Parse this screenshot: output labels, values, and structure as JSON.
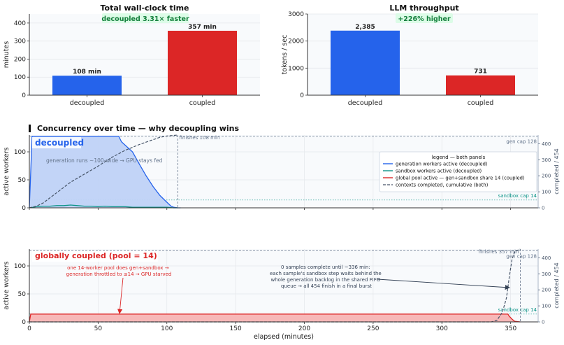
{
  "colors": {
    "decoupled": "#2563eb",
    "coupled": "#dc2626",
    "sandbox": "#0d9488",
    "cumulative": "#475569",
    "grid": "#e5e7eb",
    "badge_bg": "#dcfce7",
    "badge_text": "#15803d"
  },
  "chart_data": [
    {
      "id": "wallclock",
      "type": "bar",
      "title": "Total wall-clock time",
      "badge": "decoupled 3.31× faster",
      "categories": [
        "decoupled",
        "coupled"
      ],
      "values": [
        108,
        357
      ],
      "value_labels": [
        "108 min",
        "357 min"
      ],
      "ylabel": "minutes",
      "ylim": [
        0,
        450
      ],
      "yticks": [
        0,
        100,
        200,
        300,
        400
      ],
      "ytick_labels": [
        "0",
        "100",
        "200",
        "300",
        "400"
      ]
    },
    {
      "id": "throughput",
      "type": "bar",
      "title": "LLM throughput",
      "badge": "+226% higher",
      "categories": [
        "decoupled",
        "coupled"
      ],
      "values": [
        2385,
        731
      ],
      "value_labels": [
        "2,385",
        "731"
      ],
      "ylabel": "tokens / sec",
      "ylim": [
        0,
        3000
      ],
      "yticks": [
        0,
        1000,
        2000,
        3000
      ],
      "ytick_labels": [
        "0",
        "1000",
        "2000",
        "3000"
      ]
    },
    {
      "id": "decoupled_timeline",
      "type": "area",
      "section_title": "Concurrency over time — why decoupling wins",
      "panel_label": "decoupled",
      "ylabel": "active workers",
      "y2label": "completed / 454",
      "xlim": [
        0,
        370
      ],
      "ylim": [
        0,
        130
      ],
      "yticks": [
        0,
        50,
        100
      ],
      "ytick_labels": [
        "0",
        "50",
        "100"
      ],
      "y2lim": [
        0,
        454
      ],
      "y2ticks": [
        0,
        100,
        200,
        300,
        400
      ],
      "y2tick_labels": [
        "0",
        "100",
        "200",
        "300",
        "400"
      ],
      "gen_cap": 128,
      "gen_cap_label": "gen cap 128",
      "sandbox_cap": 14,
      "sandbox_cap_label": "sandbox cap 14",
      "finish": 108,
      "finish_label": "finishes 108 min",
      "annotation": "generation runs ~100-wide → GPU stays fed",
      "series": [
        {
          "name": "generation workers active  (decoupled)",
          "x": [
            0,
            2,
            65,
            67,
            75,
            80,
            85,
            90,
            95,
            100,
            103,
            105,
            108,
            110
          ],
          "y": [
            0,
            128,
            128,
            118,
            100,
            78,
            57,
            38,
            22,
            10,
            3,
            1,
            0,
            0
          ]
        },
        {
          "name": "sandbox workers active  (decoupled)",
          "x": [
            0,
            5,
            10,
            15,
            20,
            25,
            30,
            35,
            40,
            45,
            50,
            55,
            60,
            65,
            70,
            75,
            80,
            85,
            90,
            95,
            100,
            105,
            108
          ],
          "y": [
            0,
            2,
            3,
            3,
            4,
            4,
            5,
            4,
            3,
            3,
            2,
            3,
            2,
            2,
            2,
            1,
            1,
            1,
            1,
            1,
            1,
            0,
            0
          ]
        },
        {
          "name": "contexts completed, cumulative  (both)",
          "x": [
            0,
            5,
            10,
            20,
            30,
            40,
            50,
            60,
            70,
            80,
            90,
            95,
            100,
            105,
            108
          ],
          "y": [
            0,
            10,
            30,
            95,
            160,
            210,
            260,
            315,
            360,
            395,
            425,
            440,
            448,
            452,
            454
          ]
        }
      ],
      "legend": {
        "title": "legend — both panels",
        "position": "right",
        "entries": [
          "generation workers active  (decoupled)",
          "sandbox workers active  (decoupled)",
          "global pool active — gen+sandbox share 14  (coupled)",
          "contexts completed, cumulative  (both)"
        ]
      }
    },
    {
      "id": "coupled_timeline",
      "type": "area",
      "panel_label": "globally coupled (pool = 14)",
      "ylabel": "active workers",
      "y2label": "completed / 454",
      "xlabel": "elapsed (minutes)",
      "xlim": [
        0,
        370
      ],
      "xticks": [
        0,
        50,
        100,
        150,
        200,
        250,
        300,
        350
      ],
      "xtick_labels": [
        "0",
        "50",
        "100",
        "150",
        "200",
        "250",
        "300",
        "350"
      ],
      "ylim": [
        0,
        130
      ],
      "yticks": [
        0,
        50,
        100
      ],
      "ytick_labels": [
        "0",
        "50",
        "100"
      ],
      "y2lim": [
        0,
        454
      ],
      "y2ticks": [
        0,
        100,
        200,
        300,
        400
      ],
      "y2tick_labels": [
        "0",
        "100",
        "200",
        "300",
        "400"
      ],
      "gen_cap": 128,
      "gen_cap_label": "gen cap 128",
      "sandbox_cap": 14,
      "sandbox_cap_label": "sandbox cap 14",
      "finish": 357,
      "finish_label": "finishes 357 min",
      "annotation_left": "one 14-worker pool does gen+sandbox →\ngeneration throttled to ≤14 → GPU starved",
      "annotation_right": "0 samples complete until ~336 min:\neach sample's sandbox step waits behind the\nwhole generation backlog in the shared FIFO\nqueue → all 454 finish in a final burst",
      "series": [
        {
          "name": "global pool active — gen+sandbox share 14  (coupled)",
          "x": [
            0,
            1,
            348,
            349,
            351,
            353,
            357
          ],
          "y": [
            0,
            14,
            14,
            10,
            5,
            1,
            0
          ]
        },
        {
          "name": "contexts completed, cumulative  (both)",
          "x": [
            0,
            336,
            340,
            344,
            347,
            349,
            351,
            353,
            357
          ],
          "y": [
            0,
            0,
            10,
            60,
            150,
            280,
            390,
            440,
            454
          ]
        }
      ]
    }
  ]
}
